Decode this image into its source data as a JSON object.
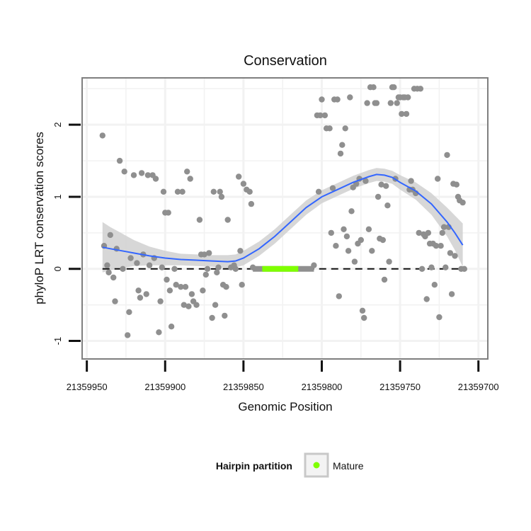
{
  "chart_data": {
    "type": "scatter",
    "title": "Conservation",
    "xlabel": "Genomic Position",
    "ylabel": "phyloP LRT conservation scores",
    "xlim": [
      21359953,
      21359694
    ],
    "ylim": [
      -1.25,
      2.65
    ],
    "x_reversed": true,
    "x_ticks": [
      21359950,
      21359900,
      21359850,
      21359800,
      21359750,
      21359700
    ],
    "x_tick_labels": [
      "21359950",
      "21359900",
      "21359850",
      "21359800",
      "21359750",
      "21359700"
    ],
    "y_ticks": [
      -1,
      0,
      1,
      2
    ],
    "y_tick_labels": [
      "-1",
      "0",
      "1",
      "2"
    ],
    "reference_line_y": 0,
    "colors": {
      "points": "#8f8f8f",
      "mature": "#7fff00",
      "smooth": "#3366ff",
      "ribbon": "#d0d0d0",
      "grid": "#f2f2f2",
      "frame": "#7f7f7f"
    },
    "points": [
      [
        21359940,
        1.85
      ],
      [
        21359939,
        0.32
      ],
      [
        21359937,
        0.05
      ],
      [
        21359936,
        -0.05
      ],
      [
        21359935,
        0.47
      ],
      [
        21359933,
        -0.12
      ],
      [
        21359932,
        -0.45
      ],
      [
        21359931,
        0.28
      ],
      [
        21359929,
        1.5
      ],
      [
        21359927,
        0.0
      ],
      [
        21359926,
        1.35
      ],
      [
        21359924,
        -0.92
      ],
      [
        21359923,
        -0.6
      ],
      [
        21359922,
        0.15
      ],
      [
        21359920,
        1.3
      ],
      [
        21359918,
        0.08
      ],
      [
        21359917,
        -0.3
      ],
      [
        21359916,
        -0.4
      ],
      [
        21359915,
        1.33
      ],
      [
        21359914,
        0.2
      ],
      [
        21359912,
        -0.35
      ],
      [
        21359911,
        1.3
      ],
      [
        21359910,
        0.05
      ],
      [
        21359908,
        1.3
      ],
      [
        21359907,
        0.15
      ],
      [
        21359906,
        1.25
      ],
      [
        21359904,
        -0.88
      ],
      [
        21359903,
        -0.45
      ],
      [
        21359902,
        0.02
      ],
      [
        21359901,
        1.07
      ],
      [
        21359900,
        0.78
      ],
      [
        21359899,
        -0.15
      ],
      [
        21359898,
        0.78
      ],
      [
        21359897,
        -0.3
      ],
      [
        21359896,
        -0.8
      ],
      [
        21359894,
        0.0
      ],
      [
        21359893,
        -0.22
      ],
      [
        21359892,
        1.07
      ],
      [
        21359890,
        -0.25
      ],
      [
        21359889,
        1.07
      ],
      [
        21359888,
        -0.5
      ],
      [
        21359887,
        -0.25
      ],
      [
        21359886,
        1.35
      ],
      [
        21359885,
        -0.52
      ],
      [
        21359884,
        1.25
      ],
      [
        21359883,
        -0.35
      ],
      [
        21359882,
        -0.45
      ],
      [
        21359880,
        -0.5
      ],
      [
        21359878,
        0.68
      ],
      [
        21359877,
        0.2
      ],
      [
        21359876,
        -0.3
      ],
      [
        21359875,
        0.2
      ],
      [
        21359874,
        -0.08
      ],
      [
        21359873,
        0.0
      ],
      [
        21359872,
        0.22
      ],
      [
        21359870,
        -0.68
      ],
      [
        21359869,
        1.07
      ],
      [
        21359868,
        -0.5
      ],
      [
        21359867,
        -0.05
      ],
      [
        21359866,
        0.02
      ],
      [
        21359865,
        1.07
      ],
      [
        21359864,
        1.0
      ],
      [
        21359863,
        -0.22
      ],
      [
        21359862,
        -0.65
      ],
      [
        21359861,
        -0.25
      ],
      [
        21359860,
        0.68
      ],
      [
        21359858,
        0.02
      ],
      [
        21359856,
        0.05
      ],
      [
        21359855,
        0.0
      ],
      [
        21359853,
        1.28
      ],
      [
        21359852,
        0.25
      ],
      [
        21359851,
        -0.22
      ],
      [
        21359850,
        1.18
      ],
      [
        21359848,
        1.1
      ],
      [
        21359846,
        1.07
      ],
      [
        21359845,
        0.9
      ],
      [
        21359844,
        0.02
      ],
      [
        21359805,
        0.05
      ],
      [
        21359803,
        2.13
      ],
      [
        21359802,
        1.07
      ],
      [
        21359801,
        2.13
      ],
      [
        21359800,
        2.35
      ],
      [
        21359798,
        2.13
      ],
      [
        21359797,
        1.95
      ],
      [
        21359795,
        1.95
      ],
      [
        21359794,
        0.5
      ],
      [
        21359793,
        1.12
      ],
      [
        21359792,
        2.35
      ],
      [
        21359791,
        0.32
      ],
      [
        21359790,
        2.35
      ],
      [
        21359789,
        -0.38
      ],
      [
        21359788,
        1.6
      ],
      [
        21359787,
        1.72
      ],
      [
        21359786,
        0.55
      ],
      [
        21359785,
        1.95
      ],
      [
        21359784,
        0.45
      ],
      [
        21359783,
        0.25
      ],
      [
        21359782,
        2.38
      ],
      [
        21359781,
        0.8
      ],
      [
        21359780,
        1.13
      ],
      [
        21359779,
        0.1
      ],
      [
        21359778,
        1.18
      ],
      [
        21359777,
        0.35
      ],
      [
        21359776,
        1.25
      ],
      [
        21359775,
        0.4
      ],
      [
        21359774,
        -0.58
      ],
      [
        21359773,
        -0.68
      ],
      [
        21359772,
        1.22
      ],
      [
        21359771,
        2.3
      ],
      [
        21359770,
        0.55
      ],
      [
        21359769,
        2.52
      ],
      [
        21359768,
        0.25
      ],
      [
        21359767,
        2.52
      ],
      [
        21359766,
        2.3
      ],
      [
        21359765,
        2.3
      ],
      [
        21359764,
        1.0
      ],
      [
        21359763,
        0.42
      ],
      [
        21359762,
        1.17
      ],
      [
        21359761,
        0.4
      ],
      [
        21359760,
        -0.15
      ],
      [
        21359759,
        1.15
      ],
      [
        21359758,
        0.88
      ],
      [
        21359757,
        0.1
      ],
      [
        21359756,
        2.3
      ],
      [
        21359755,
        2.52
      ],
      [
        21359754,
        2.52
      ],
      [
        21359753,
        1.25
      ],
      [
        21359752,
        2.3
      ],
      [
        21359751,
        2.38
      ],
      [
        21359750,
        2.38
      ],
      [
        21359749,
        2.15
      ],
      [
        21359748,
        2.38
      ],
      [
        21359747,
        2.38
      ],
      [
        21359746,
        2.15
      ],
      [
        21359745,
        2.38
      ],
      [
        21359744,
        1.1
      ],
      [
        21359743,
        1.22
      ],
      [
        21359742,
        1.1
      ],
      [
        21359741,
        2.5
      ],
      [
        21359740,
        1.05
      ],
      [
        21359739,
        2.5
      ],
      [
        21359738,
        0.5
      ],
      [
        21359737,
        2.5
      ],
      [
        21359736,
        0.0
      ],
      [
        21359735,
        0.48
      ],
      [
        21359734,
        0.45
      ],
      [
        21359733,
        -0.42
      ],
      [
        21359732,
        0.5
      ],
      [
        21359731,
        0.35
      ],
      [
        21359730,
        0.02
      ],
      [
        21359729,
        0.35
      ],
      [
        21359728,
        -0.22
      ],
      [
        21359727,
        0.32
      ],
      [
        21359726,
        1.25
      ],
      [
        21359725,
        -0.67
      ],
      [
        21359724,
        0.32
      ],
      [
        21359723,
        0.5
      ],
      [
        21359722,
        0.58
      ],
      [
        21359721,
        0.02
      ],
      [
        21359720,
        1.58
      ],
      [
        21359719,
        0.58
      ],
      [
        21359718,
        0.22
      ],
      [
        21359717,
        -0.35
      ],
      [
        21359716,
        1.18
      ],
      [
        21359715,
        0.18
      ],
      [
        21359714,
        1.17
      ],
      [
        21359713,
        1.0
      ],
      [
        21359712,
        0.95
      ],
      [
        21359711,
        0.0
      ],
      [
        21359710,
        0.92
      ],
      [
        21359709,
        0.0
      ]
    ],
    "mature_region": [
      21359838,
      21359815
    ],
    "smooth_x": [
      21359940,
      21359935,
      21359930,
      21359925,
      21359920,
      21359910,
      21359900,
      21359890,
      21359880,
      21359870,
      21359860,
      21359855,
      21359850,
      21359840,
      21359830,
      21359820,
      21359810,
      21359800,
      21359790,
      21359780,
      21359770,
      21359765,
      21359760,
      21359755,
      21359750,
      21359740,
      21359730,
      21359720,
      21359715,
      21359710
    ],
    "smooth_y": [
      0.3,
      0.28,
      0.26,
      0.24,
      0.22,
      0.18,
      0.15,
      0.13,
      0.12,
      0.11,
      0.1,
      0.11,
      0.15,
      0.28,
      0.45,
      0.65,
      0.85,
      1.0,
      1.1,
      1.2,
      1.28,
      1.31,
      1.3,
      1.27,
      1.2,
      1.08,
      0.9,
      0.65,
      0.5,
      0.33
    ],
    "ribbon_halfwidth": [
      0.35,
      0.3,
      0.26,
      0.22,
      0.18,
      0.13,
      0.1,
      0.08,
      0.08,
      0.08,
      0.09,
      0.09,
      0.1,
      0.1,
      0.1,
      0.1,
      0.1,
      0.09,
      0.09,
      0.09,
      0.09,
      0.09,
      0.09,
      0.09,
      0.1,
      0.12,
      0.15,
      0.2,
      0.24,
      0.3
    ],
    "legend": {
      "title": "Hairpin partition",
      "items": [
        {
          "label": "Mature"
        }
      ]
    }
  }
}
